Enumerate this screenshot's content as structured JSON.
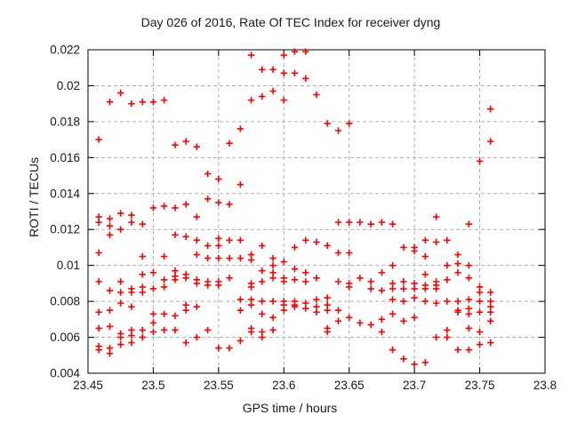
{
  "page": {
    "background": "#ffffff"
  },
  "chart_data": {
    "type": "scatter",
    "title": "Day 026 of 2016, Rate Of TEC Index for receiver dyng",
    "xlabel": "GPS time / hours",
    "ylabel": "ROTI / TECUs",
    "xlim": [
      23.45,
      23.8
    ],
    "ylim": [
      0.004,
      0.022
    ],
    "grid": true,
    "legend": "none",
    "frame_color": "#000000",
    "grid_color": "#b0b0b0",
    "marker": {
      "shape": "plus",
      "color": "#ff0000",
      "size": 7
    },
    "xticks": {
      "values": [
        23.45,
        23.5,
        23.55,
        23.6,
        23.65,
        23.7,
        23.75,
        23.8
      ],
      "labels": [
        "23.45",
        "23.5",
        "23.55",
        "23.6",
        "23.65",
        "23.7",
        "23.75",
        "23.8"
      ]
    },
    "yticks": {
      "values": [
        0.004,
        0.006,
        0.008,
        0.01,
        0.012,
        0.014,
        0.016,
        0.018,
        0.02,
        0.022
      ],
      "labels": [
        "0.004",
        "0.006",
        "0.008",
        "0.01",
        "0.012",
        "0.014",
        "0.016",
        "0.018",
        "0.02",
        "0.022"
      ]
    },
    "series": [
      {
        "name": "ROTI",
        "columns": [
          {
            "x": 23.4583,
            "y": [
              0.017,
              0.0127,
              0.0124,
              0.0107,
              0.0091,
              0.0074,
              0.0065,
              0.0055,
              0.0053
            ]
          },
          {
            "x": 23.4667,
            "y": [
              0.0191,
              0.0126,
              0.0122,
              0.0117,
              0.0086,
              0.0075,
              0.0066,
              0.0054,
              0.0051
            ]
          },
          {
            "x": 23.475,
            "y": [
              0.0196,
              0.0129,
              0.012,
              0.0091,
              0.0085,
              0.0079,
              0.0062,
              0.006,
              0.0056
            ]
          },
          {
            "x": 23.4833,
            "y": [
              0.019,
              0.0128,
              0.0124,
              0.0087,
              0.0085,
              0.0077,
              0.0064,
              0.0061,
              0.0057
            ]
          },
          {
            "x": 23.4917,
            "y": [
              0.0191,
              0.0123,
              0.0105,
              0.0095,
              0.0088,
              0.0085,
              0.0064,
              0.006
            ]
          },
          {
            "x": 23.5,
            "y": [
              0.0191,
              0.0132,
              0.0096,
              0.0087,
              0.0073,
              0.0068,
              0.0063
            ]
          },
          {
            "x": 23.5083,
            "y": [
              0.0192,
              0.0133,
              0.0105,
              0.0092,
              0.0088,
              0.0073,
              0.0064
            ]
          },
          {
            "x": 23.5167,
            "y": [
              0.0167,
              0.0132,
              0.0117,
              0.0097,
              0.0094,
              0.0092,
              0.0072,
              0.0064
            ]
          },
          {
            "x": 23.525,
            "y": [
              0.0169,
              0.0134,
              0.0116,
              0.0095,
              0.0093,
              0.0078,
              0.0075,
              0.0057
            ]
          },
          {
            "x": 23.5333,
            "y": [
              0.0166,
              0.0127,
              0.0114,
              0.0106,
              0.0092,
              0.009,
              0.0077,
              0.006
            ]
          },
          {
            "x": 23.5417,
            "y": [
              0.0151,
              0.0137,
              0.0111,
              0.0104,
              0.0091,
              0.0089,
              0.0064
            ]
          },
          {
            "x": 23.55,
            "y": [
              0.0148,
              0.0135,
              0.0115,
              0.0111,
              0.0104,
              0.0091,
              0.0089,
              0.0054
            ]
          },
          {
            "x": 23.5583,
            "y": [
              0.0168,
              0.0134,
              0.0114,
              0.0104,
              0.0093,
              0.0054
            ]
          },
          {
            "x": 23.5667,
            "y": [
              0.0176,
              0.0145,
              0.0114,
              0.0104,
              0.0081,
              0.0075,
              0.0058
            ]
          },
          {
            "x": 23.575,
            "y": [
              0.0217,
              0.0192,
              0.0106,
              0.0103,
              0.009,
              0.0088,
              0.0081,
              0.0078,
              0.0065,
              0.0063
            ]
          },
          {
            "x": 23.5833,
            "y": [
              0.0209,
              0.0194,
              0.0111,
              0.0097,
              0.0091,
              0.008,
              0.0073,
              0.0063,
              0.006
            ]
          },
          {
            "x": 23.5917,
            "y": [
              0.0209,
              0.0197,
              0.0104,
              0.01,
              0.0096,
              0.0093,
              0.008,
              0.0071,
              0.0064
            ]
          },
          {
            "x": 23.6,
            "y": [
              0.0217,
              0.0207,
              0.0192,
              0.0102,
              0.0093,
              0.0091,
              0.008,
              0.0078,
              0.0075
            ]
          },
          {
            "x": 23.6083,
            "y": [
              0.0219,
              0.0207,
              0.011,
              0.0098,
              0.0092,
              0.008,
              0.0078,
              0.0077
            ]
          },
          {
            "x": 23.6167,
            "y": [
              0.0219,
              0.0204,
              0.0114,
              0.0096,
              0.0091,
              0.0079,
              0.0076
            ]
          },
          {
            "x": 23.625,
            "y": [
              0.0195,
              0.0113,
              0.0093,
              0.0081,
              0.0077,
              0.0074
            ]
          },
          {
            "x": 23.6333,
            "y": [
              0.0179,
              0.0111,
              0.0082,
              0.0078,
              0.0075,
              0.0065,
              0.0063
            ]
          },
          {
            "x": 23.6417,
            "y": [
              0.0175,
              0.0124,
              0.0107,
              0.0091,
              0.0075,
              0.0069
            ]
          },
          {
            "x": 23.65,
            "y": [
              0.0179,
              0.0124,
              0.0107,
              0.009,
              0.0088,
              0.0071
            ]
          },
          {
            "x": 23.6583,
            "y": [
              0.0124,
              0.0093,
              0.0068
            ]
          },
          {
            "x": 23.6667,
            "y": [
              0.0123,
              0.0091,
              0.0087,
              0.0067
            ]
          },
          {
            "x": 23.675,
            "y": [
              0.0124,
              0.0096,
              0.0086,
              0.007,
              0.0063
            ]
          },
          {
            "x": 23.6833,
            "y": [
              0.0123,
              0.01,
              0.009,
              0.0087,
              0.0081,
              0.0073,
              0.0053
            ]
          },
          {
            "x": 23.6917,
            "y": [
              0.011,
              0.0091,
              0.0087,
              0.008,
              0.0069,
              0.0048
            ]
          },
          {
            "x": 23.7,
            "y": [
              0.011,
              0.0108,
              0.009,
              0.0087,
              0.0082,
              0.0071,
              0.0045
            ]
          },
          {
            "x": 23.7083,
            "y": [
              0.0114,
              0.0105,
              0.0095,
              0.0089,
              0.0087,
              0.008,
              0.0046
            ]
          },
          {
            "x": 23.7167,
            "y": [
              0.0127,
              0.0113,
              0.0091,
              0.0089,
              0.0087,
              0.0079,
              0.006
            ]
          },
          {
            "x": 23.725,
            "y": [
              0.0114,
              0.01,
              0.0092,
              0.008,
              0.0064,
              0.006
            ]
          },
          {
            "x": 23.7333,
            "y": [
              0.0106,
              0.0101,
              0.0096,
              0.008,
              0.0075,
              0.0074,
              0.0053
            ]
          },
          {
            "x": 23.7417,
            "y": [
              0.0123,
              0.01,
              0.0093,
              0.0081,
              0.0076,
              0.0073,
              0.0065,
              0.0053
            ]
          },
          {
            "x": 23.75,
            "y": [
              0.0158,
              0.0088,
              0.0085,
              0.008,
              0.0074,
              0.0063,
              0.0056
            ]
          },
          {
            "x": 23.7583,
            "y": [
              0.0187,
              0.0169,
              0.0085,
              0.008,
              0.0077,
              0.0074,
              0.0069,
              0.0057
            ]
          }
        ]
      }
    ]
  }
}
